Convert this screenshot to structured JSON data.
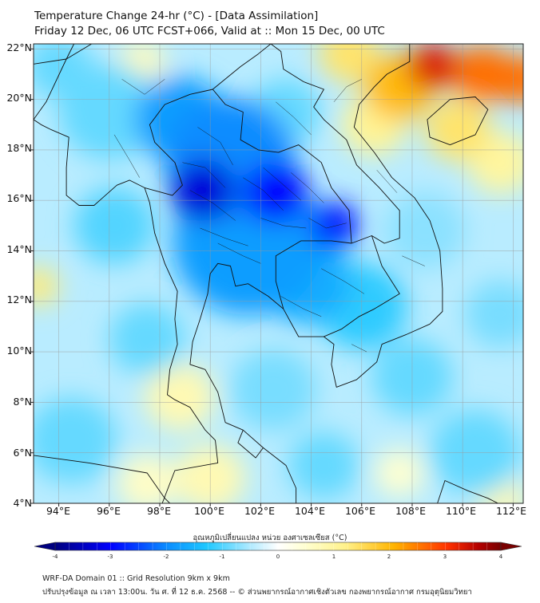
{
  "header": {
    "title": "Temperature Change 24-hr (°C) - [Data Assimilation]",
    "subtitle": "Friday 12 Dec, 06 UTC FCST+066, Valid at :: Mon 15 Dec, 00 UTC"
  },
  "map": {
    "lat_labels": [
      "22°N",
      "20°N",
      "18°N",
      "16°N",
      "14°N",
      "12°N",
      "10°N",
      "8°N",
      "6°N",
      "4°N"
    ],
    "lon_labels": [
      "94°E",
      "96°E",
      "98°E",
      "100°E",
      "102°E",
      "104°E",
      "106°E",
      "108°E",
      "110°E",
      "112°E"
    ],
    "lat_range": [
      4,
      22.2
    ],
    "lon_range": [
      93,
      112.4
    ],
    "anomalies": [
      {
        "lon": 99.7,
        "lat": 16.4,
        "value": -3.3,
        "radius_deg": 1.3
      },
      {
        "lon": 102.6,
        "lat": 16.3,
        "value": -3.0,
        "radius_deg": 1.3
      },
      {
        "lon": 104.9,
        "lat": 15.0,
        "value": -2.8,
        "radius_deg": 1.0
      },
      {
        "lon": 100.8,
        "lat": 17.6,
        "value": -2.0,
        "radius_deg": 2.6
      },
      {
        "lon": 101.5,
        "lat": 14.3,
        "value": -1.8,
        "radius_deg": 3.0
      },
      {
        "lon": 98.8,
        "lat": 19.2,
        "value": -1.8,
        "radius_deg": 1.8
      },
      {
        "lon": 103.8,
        "lat": 12.8,
        "value": -1.6,
        "radius_deg": 1.8
      },
      {
        "lon": 106.0,
        "lat": 11.8,
        "value": -1.2,
        "radius_deg": 1.8
      },
      {
        "lon": 96.2,
        "lat": 15.0,
        "value": -1.0,
        "radius_deg": 1.6
      },
      {
        "lon": 96.0,
        "lat": 19.5,
        "value": -0.9,
        "radius_deg": 2.0
      },
      {
        "lon": 94.0,
        "lat": 21.3,
        "value": -0.9,
        "radius_deg": 1.3
      },
      {
        "lon": 97.5,
        "lat": 10.5,
        "value": -0.9,
        "radius_deg": 1.5
      },
      {
        "lon": 94.5,
        "lat": 6.5,
        "value": -0.9,
        "radius_deg": 1.8
      },
      {
        "lon": 102.5,
        "lat": 8.5,
        "value": -0.8,
        "radius_deg": 1.7
      },
      {
        "lon": 104.5,
        "lat": 5.5,
        "value": -0.9,
        "radius_deg": 1.4
      },
      {
        "lon": 108.0,
        "lat": 9.0,
        "value": -0.9,
        "radius_deg": 1.6
      },
      {
        "lon": 110.5,
        "lat": 6.0,
        "value": -0.9,
        "radius_deg": 1.8
      },
      {
        "lon": 111.5,
        "lat": 11.5,
        "value": -0.8,
        "radius_deg": 1.4
      },
      {
        "lon": 108.5,
        "lat": 14.8,
        "value": -0.7,
        "radius_deg": 1.6
      },
      {
        "lon": 103.0,
        "lat": 19.5,
        "value": -0.9,
        "radius_deg": 1.4
      },
      {
        "lon": 108.8,
        "lat": 21.3,
        "value": 3.3,
        "radius_deg": 1.0
      },
      {
        "lon": 110.8,
        "lat": 21.0,
        "value": 2.6,
        "radius_deg": 1.2
      },
      {
        "lon": 112.3,
        "lat": 20.8,
        "value": 2.6,
        "radius_deg": 1.0
      },
      {
        "lon": 107.5,
        "lat": 20.5,
        "value": 2.0,
        "radius_deg": 1.4
      },
      {
        "lon": 109.8,
        "lat": 18.8,
        "value": 1.4,
        "radius_deg": 1.3
      },
      {
        "lon": 105.5,
        "lat": 21.8,
        "value": 1.4,
        "radius_deg": 1.2
      },
      {
        "lon": 106.5,
        "lat": 19.0,
        "value": 1.1,
        "radius_deg": 1.3
      },
      {
        "lon": 111.5,
        "lat": 17.5,
        "value": 1.0,
        "radius_deg": 1.3
      },
      {
        "lon": 93.2,
        "lat": 12.6,
        "value": 1.3,
        "radius_deg": 0.8
      },
      {
        "lon": 98.8,
        "lat": 8.2,
        "value": 0.8,
        "radius_deg": 1.4
      },
      {
        "lon": 100.0,
        "lat": 5.0,
        "value": 0.8,
        "radius_deg": 1.4
      },
      {
        "lon": 97.5,
        "lat": 4.8,
        "value": 0.6,
        "radius_deg": 1.2
      },
      {
        "lon": 111.5,
        "lat": 4.2,
        "value": 0.8,
        "radius_deg": 1.0
      },
      {
        "lon": 97.3,
        "lat": 21.5,
        "value": 0.7,
        "radius_deg": 0.9
      },
      {
        "lon": 107.5,
        "lat": 5.2,
        "value": 0.5,
        "radius_deg": 1.0
      }
    ],
    "land": {
      "indochina": [
        [
          93.0,
          19.2
        ],
        [
          93.5,
          19.9
        ],
        [
          94.3,
          21.6
        ],
        [
          94.6,
          22.2
        ],
        [
          107.9,
          22.2
        ],
        [
          107.9,
          21.5
        ],
        [
          107.0,
          21.0
        ],
        [
          106.5,
          20.5
        ],
        [
          105.9,
          19.8
        ],
        [
          105.7,
          18.9
        ],
        [
          106.5,
          17.9
        ],
        [
          107.2,
          16.9
        ],
        [
          108.1,
          16.1
        ],
        [
          108.7,
          15.2
        ],
        [
          109.1,
          14.0
        ],
        [
          109.2,
          12.5
        ],
        [
          109.2,
          11.6
        ],
        [
          108.7,
          11.1
        ],
        [
          107.8,
          10.7
        ],
        [
          106.8,
          10.3
        ],
        [
          106.6,
          9.6
        ],
        [
          105.8,
          8.9
        ],
        [
          105.0,
          8.6
        ],
        [
          104.8,
          9.5
        ],
        [
          104.9,
          10.3
        ],
        [
          104.5,
          10.6
        ],
        [
          103.5,
          10.6
        ],
        [
          102.9,
          11.7
        ],
        [
          102.3,
          12.2
        ],
        [
          101.5,
          12.7
        ],
        [
          101.0,
          12.6
        ],
        [
          100.8,
          13.4
        ],
        [
          100.3,
          13.5
        ],
        [
          100.0,
          13.1
        ],
        [
          99.9,
          12.3
        ],
        [
          99.6,
          11.3
        ],
        [
          99.3,
          10.4
        ],
        [
          99.2,
          9.5
        ],
        [
          99.8,
          9.3
        ],
        [
          100.3,
          8.4
        ],
        [
          100.6,
          7.2
        ],
        [
          101.3,
          6.9
        ],
        [
          102.1,
          6.2
        ],
        [
          103.0,
          5.5
        ],
        [
          103.4,
          4.6
        ],
        [
          103.4,
          4.0
        ],
        [
          98.1,
          4.0
        ],
        [
          98.6,
          5.3
        ],
        [
          100.3,
          5.6
        ],
        [
          100.2,
          6.5
        ],
        [
          99.8,
          6.9
        ],
        [
          99.2,
          7.8
        ],
        [
          98.6,
          8.1
        ],
        [
          98.3,
          8.3
        ],
        [
          98.4,
          9.3
        ],
        [
          98.7,
          10.3
        ],
        [
          98.6,
          11.3
        ],
        [
          98.7,
          12.4
        ],
        [
          98.2,
          13.5
        ],
        [
          97.8,
          14.7
        ],
        [
          97.6,
          15.9
        ],
        [
          97.4,
          16.5
        ],
        [
          96.8,
          16.8
        ],
        [
          96.3,
          16.6
        ],
        [
          95.4,
          15.8
        ],
        [
          94.8,
          15.8
        ],
        [
          94.3,
          16.2
        ],
        [
          94.3,
          17.3
        ],
        [
          94.4,
          18.5
        ],
        [
          93.7,
          18.8
        ],
        [
          93.3,
          19.0
        ]
      ],
      "hainan": [
        [
          108.6,
          19.2
        ],
        [
          109.5,
          20.0
        ],
        [
          110.5,
          20.1
        ],
        [
          111.0,
          19.6
        ],
        [
          110.5,
          18.6
        ],
        [
          109.5,
          18.2
        ],
        [
          108.7,
          18.5
        ]
      ],
      "sumatra": [
        [
          93.0,
          5.9
        ],
        [
          95.2,
          5.6
        ],
        [
          97.5,
          5.2
        ],
        [
          98.2,
          4.2
        ],
        [
          98.4,
          4.0
        ],
        [
          93.0,
          4.0
        ]
      ],
      "borneo": [
        [
          109.0,
          4.0
        ],
        [
          109.3,
          4.9
        ],
        [
          110.2,
          4.5
        ],
        [
          111.0,
          4.2
        ],
        [
          111.4,
          4.0
        ]
      ]
    },
    "borders": [
      [
        [
          97.4,
          16.5
        ],
        [
          98.5,
          16.2
        ],
        [
          98.9,
          16.6
        ],
        [
          98.6,
          17.5
        ],
        [
          97.8,
          18.3
        ],
        [
          97.6,
          19.0
        ],
        [
          98.2,
          19.8
        ],
        [
          99.2,
          20.2
        ],
        [
          100.1,
          20.4
        ]
      ],
      [
        [
          100.1,
          20.4
        ],
        [
          100.6,
          19.8
        ],
        [
          101.3,
          19.5
        ],
        [
          101.2,
          18.4
        ],
        [
          101.9,
          18.0
        ],
        [
          102.7,
          17.9
        ],
        [
          103.5,
          18.2
        ],
        [
          104.4,
          17.5
        ],
        [
          104.8,
          16.5
        ],
        [
          105.5,
          15.6
        ],
        [
          105.6,
          14.3
        ]
      ],
      [
        [
          105.6,
          14.3
        ],
        [
          104.8,
          14.4
        ],
        [
          103.6,
          14.4
        ],
        [
          102.6,
          13.8
        ],
        [
          102.6,
          12.8
        ],
        [
          102.9,
          11.7
        ]
      ],
      [
        [
          100.1,
          20.4
        ],
        [
          101.2,
          21.3
        ],
        [
          101.9,
          21.8
        ],
        [
          102.4,
          22.2
        ]
      ],
      [
        [
          102.4,
          22.2
        ],
        [
          102.8,
          21.9
        ],
        [
          102.9,
          21.2
        ],
        [
          103.7,
          20.7
        ],
        [
          104.5,
          20.4
        ],
        [
          104.1,
          19.7
        ],
        [
          104.5,
          19.2
        ],
        [
          105.4,
          18.4
        ],
        [
          105.8,
          17.4
        ],
        [
          106.7,
          16.5
        ],
        [
          107.5,
          15.6
        ],
        [
          107.5,
          14.5
        ],
        [
          106.9,
          14.3
        ],
        [
          106.4,
          14.6
        ],
        [
          105.6,
          14.3
        ]
      ],
      [
        [
          106.4,
          14.6
        ],
        [
          106.8,
          13.4
        ],
        [
          107.5,
          12.3
        ],
        [
          106.5,
          11.7
        ],
        [
          105.9,
          11.4
        ],
        [
          105.2,
          10.9
        ],
        [
          104.5,
          10.6
        ]
      ],
      [
        [
          93.0,
          21.4
        ],
        [
          94.3,
          21.6
        ],
        [
          95.3,
          22.2
        ]
      ],
      [
        [
          101.3,
          6.9
        ],
        [
          101.1,
          6.4
        ],
        [
          101.8,
          5.8
        ],
        [
          102.1,
          6.2
        ]
      ]
    ],
    "provinces": [
      [
        [
          99.5,
          18.9
        ],
        [
          100.4,
          18.3
        ],
        [
          100.9,
          17.4
        ]
      ],
      [
        [
          98.9,
          17.5
        ],
        [
          99.8,
          17.3
        ],
        [
          100.6,
          16.5
        ]
      ],
      [
        [
          99.2,
          16.4
        ],
        [
          100.1,
          15.9
        ],
        [
          101.0,
          15.2
        ]
      ],
      [
        [
          99.6,
          14.9
        ],
        [
          100.6,
          14.5
        ],
        [
          101.5,
          14.2
        ]
      ],
      [
        [
          101.3,
          16.9
        ],
        [
          102.1,
          16.4
        ],
        [
          102.9,
          15.6
        ]
      ],
      [
        [
          102.1,
          17.3
        ],
        [
          102.8,
          16.7
        ],
        [
          103.6,
          16.0
        ]
      ],
      [
        [
          103.2,
          17.1
        ],
        [
          103.9,
          16.5
        ],
        [
          104.5,
          15.9
        ]
      ],
      [
        [
          102.0,
          15.3
        ],
        [
          102.9,
          15.0
        ],
        [
          103.8,
          14.9
        ]
      ],
      [
        [
          103.9,
          15.3
        ],
        [
          104.6,
          14.9
        ],
        [
          105.4,
          15.1
        ]
      ],
      [
        [
          100.3,
          14.3
        ],
        [
          101.3,
          13.8
        ],
        [
          102.0,
          13.5
        ]
      ],
      [
        [
          104.4,
          13.3
        ],
        [
          105.3,
          12.8
        ],
        [
          106.1,
          12.3
        ]
      ],
      [
        [
          102.8,
          12.2
        ],
        [
          103.7,
          11.7
        ],
        [
          104.4,
          11.4
        ]
      ],
      [
        [
          105.6,
          10.3
        ],
        [
          106.2,
          10.0
        ]
      ],
      [
        [
          106.0,
          20.8
        ],
        [
          105.4,
          20.5
        ],
        [
          104.9,
          19.9
        ]
      ],
      [
        [
          106.6,
          17.2
        ],
        [
          107.4,
          16.3
        ]
      ],
      [
        [
          107.6,
          13.8
        ],
        [
          108.5,
          13.4
        ]
      ],
      [
        [
          98.2,
          20.8
        ],
        [
          97.4,
          20.2
        ],
        [
          96.5,
          20.8
        ]
      ],
      [
        [
          96.2,
          18.6
        ],
        [
          96.8,
          17.6
        ],
        [
          97.2,
          16.9
        ]
      ],
      [
        [
          102.6,
          19.9
        ],
        [
          103.3,
          19.3
        ],
        [
          104.0,
          18.6
        ]
      ]
    ]
  },
  "colorbar": {
    "label": "อุณหภูมิเปลี่ยนแปลง หน่วย องศาเซลเซียส (°C)",
    "ticks": [
      "-4",
      "-3",
      "-2",
      "-1",
      "0",
      "1",
      "2",
      "3",
      "4"
    ],
    "min": -4,
    "max": 4,
    "colors": [
      "#00007f",
      "#0000ff",
      "#0a8cff",
      "#1ec8ff",
      "#b4ebff",
      "#ffffff",
      "#ffffd2",
      "#fff28c",
      "#ffb400",
      "#ff3200",
      "#b40000",
      "#780000"
    ],
    "color_positions": [
      0,
      0.125,
      0.25,
      0.34,
      0.44,
      0.5,
      0.56,
      0.65,
      0.76,
      0.88,
      0.95,
      1
    ]
  },
  "footer": {
    "line1": "WRF-DA Domain 01 :: Grid Resolution 9km x 9km",
    "line2": "ปรับปรุงข้อมูล ณ เวลา 13:00น. วัน ศ. ที่ 12 ธ.ค. 2568 -- © ส่วนพยากรณ์อากาศเชิงตัวเลข กองพยากรณ์อากาศ กรมอุตุนิยมวิทยา"
  }
}
